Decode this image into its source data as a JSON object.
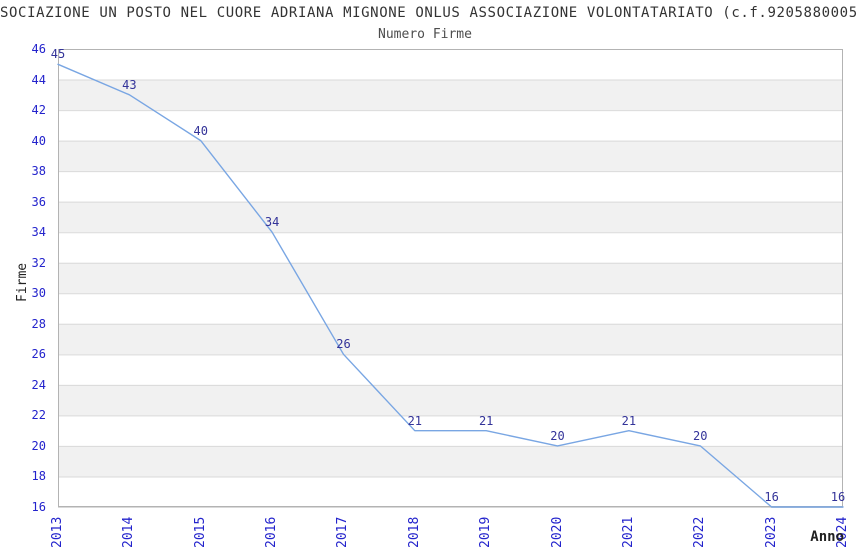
{
  "chart_data": {
    "type": "line",
    "title": "SOCIAZIONE UN POSTO NEL CUORE ADRIANA MIGNONE ONLUS ASSOCIAZIONE VOLONTATARIATO (c.f.9205880005",
    "subtitle": "Numero Firme",
    "xlabel": "Anno",
    "ylabel": "Firme",
    "categories": [
      2013,
      2014,
      2015,
      2016,
      2017,
      2018,
      2019,
      2020,
      2021,
      2022,
      2023,
      2024
    ],
    "series": [
      {
        "name": "Numero Firme",
        "values": [
          45,
          43,
          40,
          34,
          26,
          21,
          21,
          20,
          21,
          20,
          16,
          16
        ]
      }
    ],
    "ylim": [
      16,
      46
    ],
    "ytick_step": 2,
    "grid": true,
    "band_pattern": "alternate-2-unit-stripes",
    "legend": "none",
    "point_labels_visible": true,
    "colors": {
      "line": "#79a6e3",
      "band_fill": "#f1f1f1",
      "gridline": "#d9d9d9",
      "plot_border": "#b3b3b3",
      "tick_label": "#2323cc",
      "point_label": "#333399",
      "title": "#333333",
      "subtitle": "#4d4d4d",
      "axis_label": "#222222"
    }
  }
}
